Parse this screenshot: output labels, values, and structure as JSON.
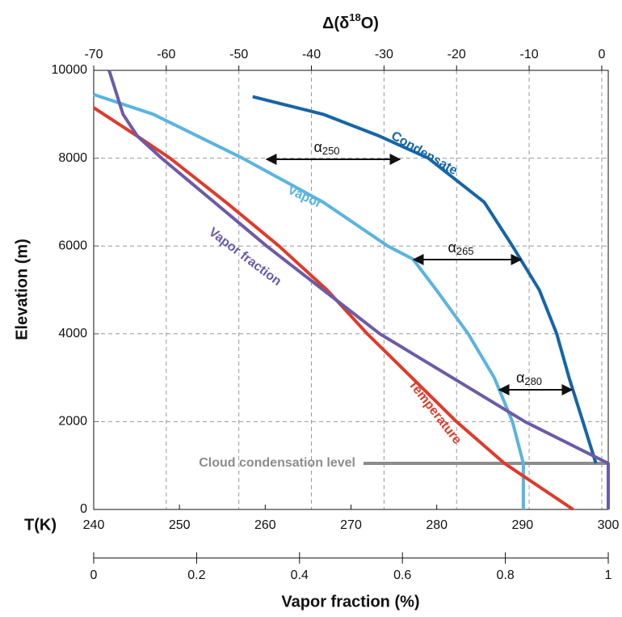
{
  "chart_data": {
    "type": "line",
    "y_label": "Elevation (m)",
    "ylim": [
      0,
      10000
    ],
    "yticks": [
      0,
      2000,
      4000,
      6000,
      8000,
      10000
    ],
    "grid": true,
    "x_top": {
      "label_parts": [
        "Δ(δ",
        "18",
        "O)"
      ],
      "xlim": [
        -70,
        0.9
      ],
      "xticks": [
        -70,
        -60,
        -50,
        -40,
        -30,
        -20,
        -10,
        0
      ]
    },
    "x_temp": {
      "label": "T(K)",
      "xlim": [
        240,
        300
      ],
      "xticks": [
        240,
        250,
        260,
        270,
        280,
        290,
        300
      ]
    },
    "x_frac": {
      "label": "Vapor fraction (%)",
      "xlim": [
        0,
        1
      ],
      "xticks": [
        0,
        0.2,
        0.4,
        0.6,
        0.8,
        1
      ]
    },
    "series": [
      {
        "name": "Condensate",
        "color": "#1565a8",
        "axis": "x_top",
        "x": [
          -48.1,
          -38.4,
          -30.6,
          -23.9,
          -16.2,
          -12.3,
          -11.2,
          -8.6,
          -6.2,
          -4.5,
          -2.6,
          -0.8
        ],
        "y": [
          9400,
          9000,
          8500,
          8000,
          7000,
          6000,
          5700,
          5000,
          4000,
          3000,
          2000,
          1050
        ]
      },
      {
        "name": "Vapor",
        "color": "#5ab4e0",
        "axis": "x_top",
        "x": [
          -70,
          -61.8,
          -49.5,
          -38.4,
          -29.5,
          -26,
          -22.8,
          -18.4,
          -14.8,
          -12.3,
          -10.8,
          -10.8
        ],
        "y": [
          9450,
          9000,
          8000,
          7000,
          6000,
          5700,
          5000,
          4000,
          3000,
          2000,
          1050,
          0
        ]
      },
      {
        "name": "Temperature",
        "color": "#e03a2a",
        "axis": "x_temp",
        "x": [
          240,
          245.1,
          248.9,
          255.4,
          261.6,
          267.2,
          271.9,
          277.1,
          282.3,
          287.9,
          295.9
        ],
        "y": [
          9150,
          8500,
          8000,
          7000,
          6000,
          5000,
          4000,
          3000,
          2000,
          1050,
          0
        ]
      },
      {
        "name": "Vapor fraction",
        "color": "#6b5ba8",
        "axis": "x_frac",
        "x": [
          0.03,
          0.057,
          0.085,
          0.132,
          0.234,
          0.336,
          0.446,
          0.556,
          0.697,
          0.838,
          1,
          1
        ],
        "y": [
          10000,
          9000,
          8500,
          8000,
          7000,
          6000,
          5000,
          4000,
          3000,
          2000,
          1050,
          0
        ]
      }
    ],
    "annotations": [
      {
        "symbol": "α",
        "subscript": "250"
      },
      {
        "symbol": "α",
        "subscript": "265"
      },
      {
        "symbol": "α",
        "subscript": "280"
      }
    ],
    "reference_line": {
      "label": "Cloud condensation level",
      "y": 1050,
      "color": "#8c8c8c"
    }
  }
}
